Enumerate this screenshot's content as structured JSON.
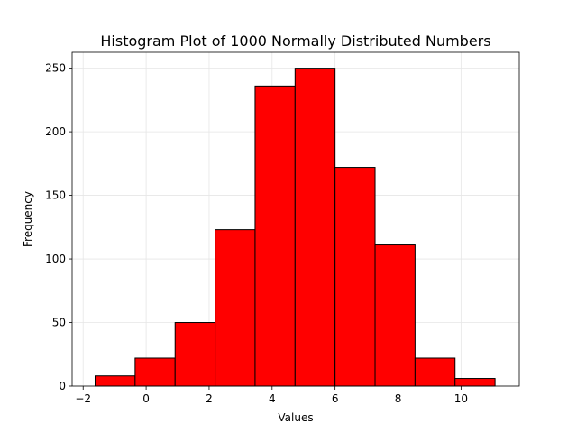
{
  "chart_data": {
    "type": "bar",
    "subtype": "histogram",
    "title": "Histogram Plot of 1000 Normally Distributed Numbers",
    "xlabel": "Values",
    "ylabel": "Frequency",
    "xlim": [
      -2.35,
      11.85
    ],
    "ylim": [
      0,
      262.5
    ],
    "xticks": [
      -2,
      0,
      2,
      4,
      6,
      8,
      10
    ],
    "xtick_labels": [
      "−2",
      "0",
      "2",
      "4",
      "6",
      "8",
      "10"
    ],
    "yticks": [
      0,
      50,
      100,
      150,
      200,
      250
    ],
    "ytick_labels": [
      "0",
      "50",
      "100",
      "150",
      "200",
      "250"
    ],
    "bin_edges": [
      -1.62,
      -0.35,
      0.92,
      2.19,
      3.46,
      4.73,
      6.0,
      7.27,
      8.54,
      9.81,
      11.08
    ],
    "values": [
      8,
      22,
      50,
      123,
      236,
      250,
      172,
      111,
      22,
      6
    ],
    "grid": true,
    "colors": {
      "bar_fill": "#ff0000",
      "bar_edge": "#000000",
      "grid": "#e6e6e6",
      "axis": "#000000"
    }
  }
}
